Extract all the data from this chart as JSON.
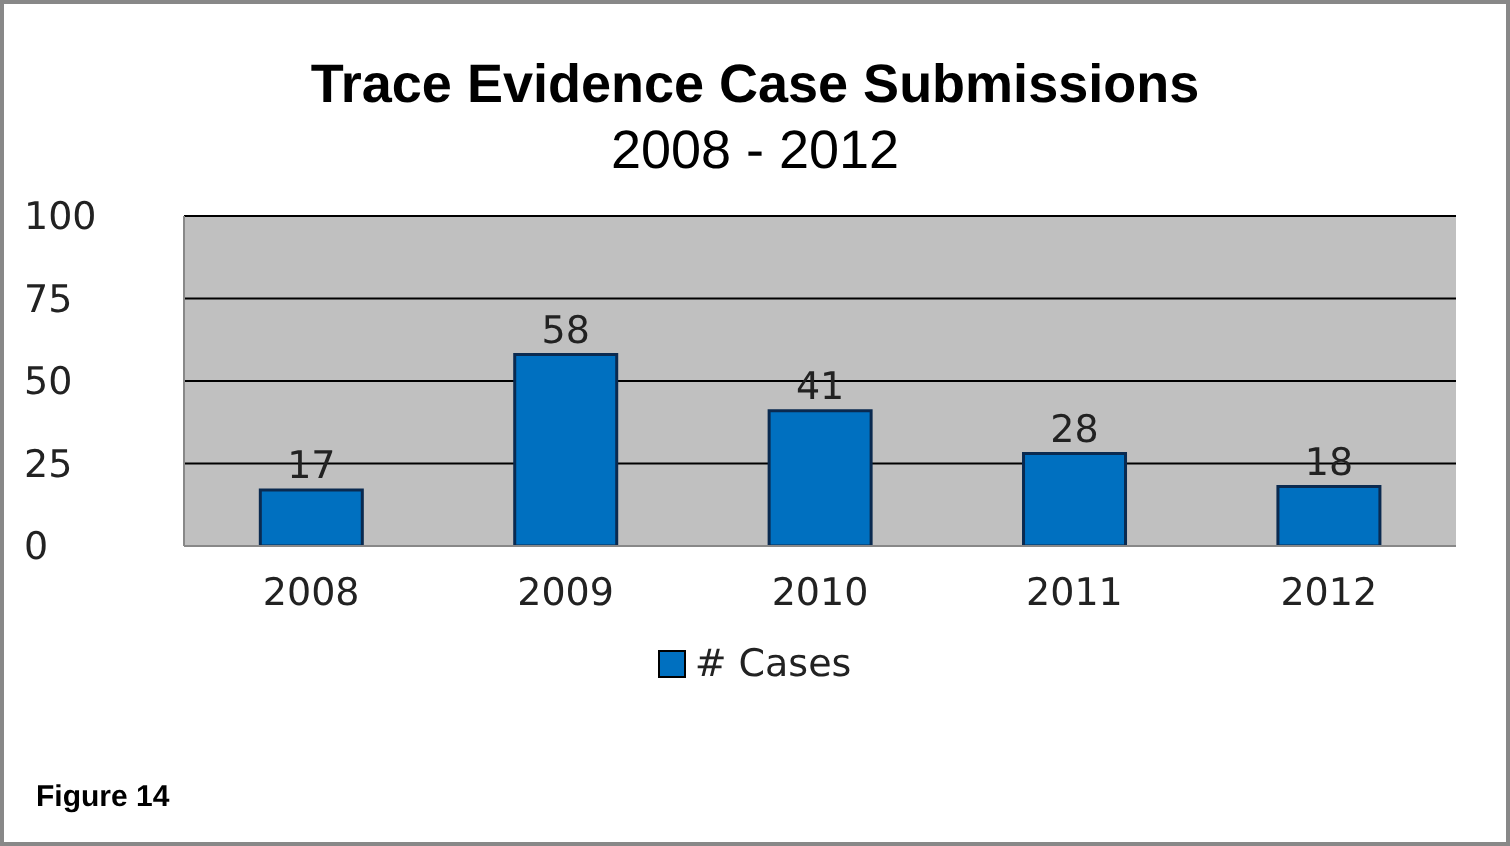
{
  "chart_data": {
    "type": "bar",
    "title": "Trace Evidence Case Submissions",
    "subtitle": "2008 - 2012",
    "categories": [
      "2008",
      "2009",
      "2010",
      "2011",
      "2012"
    ],
    "series": [
      {
        "name": "# Cases",
        "color": "#0070c0",
        "values": [
          17,
          58,
          41,
          28,
          18
        ]
      }
    ],
    "ylim": [
      0,
      100
    ],
    "yticks": [
      0,
      25,
      50,
      75,
      100
    ],
    "grid": "y",
    "data_labels": true,
    "legend": "bottom",
    "annotations": [
      "Figure 14"
    ]
  }
}
